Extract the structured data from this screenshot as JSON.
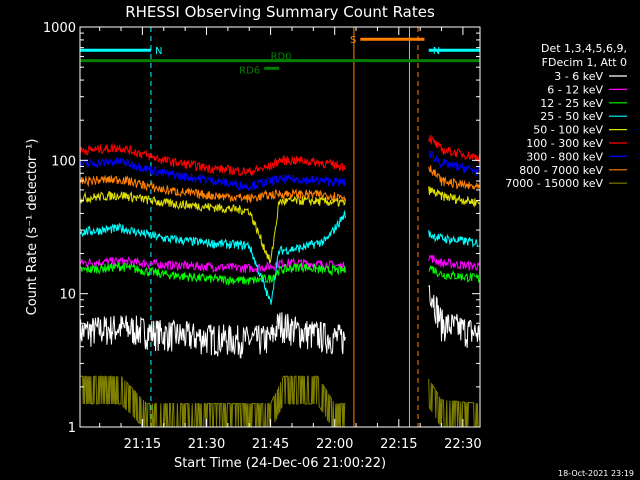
{
  "chart_data": {
    "type": "line",
    "title": "RHESSI Observing Summary Count Rates",
    "xlabel": "Start Time (24-Dec-06 21:00:22)",
    "ylabel": "Count Rate (s⁻¹ detector⁻¹)",
    "yscale": "log",
    "ylim": [
      1,
      1000
    ],
    "xlim_min": [
      0.4,
      94
    ],
    "x_ticks": [
      {
        "value": 15,
        "label": "21:15"
      },
      {
        "value": 30,
        "label": "21:30"
      },
      {
        "value": 45,
        "label": "21:45"
      },
      {
        "value": 60,
        "label": "22:00"
      },
      {
        "value": 75,
        "label": "22:15"
      },
      {
        "value": 90,
        "label": "22:30"
      }
    ],
    "y_ticks": [
      {
        "value": 1,
        "label": "1"
      },
      {
        "value": 10,
        "label": "10"
      },
      {
        "value": 100,
        "label": "100"
      },
      {
        "value": 1000,
        "label": "1000"
      }
    ],
    "legend_header": [
      "Det 1,3,4,5,6,9,",
      "FDecim 1, Att 0"
    ],
    "legend_position": "right",
    "series": [
      {
        "name": "3 - 6 keV",
        "color": "#ffffff",
        "x": [
          0.4,
          10,
          20,
          30,
          40,
          45,
          47,
          52,
          58,
          62.5,
          82,
          85,
          94
        ],
        "y": [
          5.2,
          5.6,
          5.0,
          4.7,
          4.5,
          4.6,
          6.0,
          5.2,
          4.8,
          4.6,
          12.0,
          6.0,
          5.0
        ]
      },
      {
        "name": "6 - 12 keV",
        "color": "#ff00ff",
        "x": [
          0.4,
          10,
          20,
          30,
          40,
          45,
          47,
          52,
          58,
          62.5,
          82,
          85,
          94
        ],
        "y": [
          17,
          17.5,
          16.5,
          16,
          15.5,
          16,
          17,
          17,
          16.5,
          16,
          19,
          17,
          16
        ]
      },
      {
        "name": "12 - 25 keV",
        "color": "#00ff00",
        "x": [
          0.4,
          10,
          20,
          30,
          40,
          45,
          47,
          52,
          58,
          62.5,
          82,
          85,
          94
        ],
        "y": [
          15,
          16,
          14,
          13,
          12.5,
          13,
          15,
          16,
          15,
          15,
          16,
          14,
          13
        ]
      },
      {
        "name": "25 - 50 keV",
        "color": "#00ffff",
        "x": [
          0.4,
          10,
          20,
          30,
          40,
          45,
          47,
          52,
          58,
          62.5,
          82,
          85,
          94
        ],
        "y": [
          29,
          31,
          26,
          24,
          23,
          8.5,
          21,
          22,
          25,
          40,
          28,
          26,
          24
        ]
      },
      {
        "name": "50 - 100 keV",
        "color": "#e0e000",
        "x": [
          0.4,
          10,
          20,
          30,
          40,
          45,
          47,
          52,
          58,
          62.5,
          82,
          85,
          94
        ],
        "y": [
          52,
          55,
          48,
          45,
          42,
          17,
          49,
          50,
          49,
          48,
          60,
          54,
          48
        ]
      },
      {
        "name": "100 - 300 keV",
        "color": "#ff0000",
        "x": [
          0.4,
          10,
          20,
          30,
          40,
          45,
          47,
          52,
          58,
          62.5,
          82,
          85,
          94
        ],
        "y": [
          118,
          125,
          100,
          88,
          82,
          90,
          100,
          100,
          95,
          90,
          150,
          120,
          105
        ]
      },
      {
        "name": "300 - 800 keV",
        "color": "#0000ff",
        "x": [
          0.4,
          10,
          20,
          30,
          40,
          45,
          47,
          52,
          58,
          62.5,
          82,
          85,
          94
        ],
        "y": [
          94,
          98,
          80,
          72,
          64,
          70,
          72,
          72,
          70,
          68,
          115,
          95,
          82
        ]
      },
      {
        "name": "800 - 7000 keV",
        "color": "#ff8000",
        "x": [
          0.4,
          10,
          20,
          30,
          40,
          45,
          47,
          52,
          58,
          62.5,
          82,
          85,
          94
        ],
        "y": [
          70,
          72,
          60,
          55,
          52,
          55,
          56,
          56,
          55,
          53,
          90,
          70,
          62
        ]
      },
      {
        "name": "7000 - 15000 keV",
        "color": "#808000",
        "x": [
          0.4,
          10,
          16,
          45,
          48,
          56,
          60,
          62.5,
          82,
          85,
          94
        ],
        "y": [
          2.4,
          2.4,
          1.5,
          1.5,
          2.4,
          2.4,
          1.5,
          1.5,
          2.3,
          1.6,
          1.5
        ]
      }
    ],
    "annotations": [
      {
        "label": "N",
        "color": "#00ffff",
        "x_start": 0.4,
        "x_end": 17,
        "y": 670
      },
      {
        "label": "N",
        "color": "#00ffff",
        "x_start": 82,
        "x_end": 94,
        "y": 670
      },
      {
        "label": "S",
        "color": "#ff8000",
        "x_start": 66,
        "x_end": 81,
        "y": 810
      },
      {
        "label": "RD0",
        "color": "#008000",
        "x_start": 0.4,
        "x_end": 94,
        "y": 560
      },
      {
        "label": "RD6",
        "color": "#008000",
        "x_start": 43.5,
        "x_end": 47,
        "y": 490
      }
    ],
    "vertical_lines": [
      {
        "x": 0.4,
        "color": "#00ffff",
        "style": "dashed"
      },
      {
        "x": 17,
        "color": "#00ffff",
        "style": "dashed"
      },
      {
        "x": 64.5,
        "color": "#ff8000",
        "style": "solid"
      },
      {
        "x": 77.5,
        "color": "#00ffff",
        "style": "solid"
      },
      {
        "x": 79.5,
        "color": "#ff8000",
        "style": "dashed"
      },
      {
        "x": 94,
        "color": "#00ffff",
        "style": "dashed"
      }
    ]
  },
  "footer": {
    "timestamp": "18-Oct-2021 23:19"
  }
}
